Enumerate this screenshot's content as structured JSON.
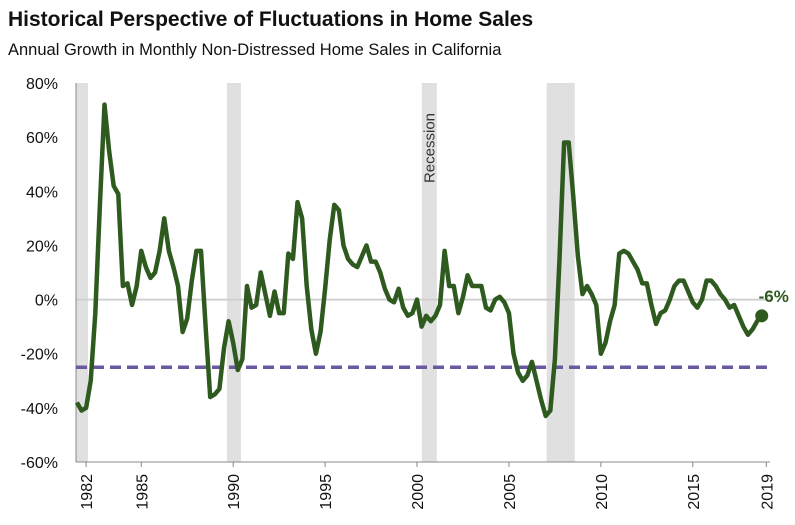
{
  "chart_data": {
    "type": "line",
    "title": "Historical Perspective of Fluctuations in Home Sales",
    "subtitle": "Annual Growth in Monthly Non-Distressed Home Sales in California",
    "x": [
      1981.5,
      1981.75,
      1982,
      1982.25,
      1982.5,
      1982.75,
      1983,
      1983.25,
      1983.5,
      1983.75,
      1984,
      1984.25,
      1984.5,
      1984.75,
      1985,
      1985.25,
      1985.5,
      1985.75,
      1986,
      1986.25,
      1986.5,
      1986.75,
      1987,
      1987.25,
      1987.5,
      1987.75,
      1988,
      1988.25,
      1988.5,
      1988.75,
      1989,
      1989.25,
      1989.5,
      1989.75,
      1990,
      1990.25,
      1990.5,
      1990.75,
      1991,
      1991.25,
      1991.5,
      1991.75,
      1992,
      1992.25,
      1992.5,
      1992.75,
      1993,
      1993.25,
      1993.5,
      1993.75,
      1994,
      1994.25,
      1994.5,
      1994.75,
      1995,
      1995.25,
      1995.5,
      1995.75,
      1996,
      1996.25,
      1996.5,
      1996.75,
      1997,
      1997.25,
      1997.5,
      1997.75,
      1998,
      1998.25,
      1998.5,
      1998.75,
      1999,
      1999.25,
      1999.5,
      1999.75,
      2000,
      2000.25,
      2000.5,
      2000.75,
      2001,
      2001.25,
      2001.5,
      2001.75,
      2002,
      2002.25,
      2002.5,
      2002.75,
      2003,
      2003.25,
      2003.5,
      2003.75,
      2004,
      2004.25,
      2004.5,
      2004.75,
      2005,
      2005.25,
      2005.5,
      2005.75,
      2006,
      2006.25,
      2006.5,
      2006.75,
      2007,
      2007.25,
      2007.5,
      2007.75,
      2008,
      2008.25,
      2008.5,
      2008.75,
      2009,
      2009.25,
      2009.5,
      2009.75,
      2010,
      2010.25,
      2010.5,
      2010.75,
      2011,
      2011.25,
      2011.5,
      2011.75,
      2012,
      2012.25,
      2012.5,
      2012.75,
      2013,
      2013.25,
      2013.5,
      2013.75,
      2014,
      2014.25,
      2014.5,
      2014.75,
      2015,
      2015.25,
      2015.5,
      2015.75,
      2016,
      2016.25,
      2016.5,
      2016.75,
      2017,
      2017.25,
      2017.5,
      2017.75,
      2018,
      2018.25,
      2018.5,
      2018.75
    ],
    "series": [
      {
        "name": "Annual growth",
        "color": "#2f5a1f",
        "values": [
          -38,
          -41,
          -40,
          -30,
          -5,
          35,
          72,
          55,
          42,
          39,
          5,
          6,
          -2,
          5,
          18,
          12,
          8,
          10,
          18,
          30,
          18,
          12,
          5,
          -12,
          -7,
          7,
          18,
          18,
          -10,
          -36,
          -35,
          -33,
          -18,
          -8,
          -16,
          -26,
          -22,
          5,
          -3,
          -2,
          10,
          2,
          -6,
          3,
          -5,
          -5,
          17,
          15,
          36,
          30,
          5,
          -11,
          -20,
          -12,
          4,
          22,
          35,
          33,
          20,
          15,
          13,
          12,
          16,
          20,
          14,
          14,
          10,
          4,
          0,
          -1,
          4,
          -3,
          -6,
          -5,
          0,
          -10,
          -6,
          -8,
          -6,
          -2,
          18,
          5,
          5,
          -5,
          1,
          9,
          5,
          5,
          5,
          -3,
          -4,
          0,
          1,
          -1,
          -5,
          -20,
          -27,
          -30,
          -28,
          -23,
          -30,
          -37,
          -43,
          -41,
          -22,
          15,
          58,
          58,
          38,
          16,
          2,
          5,
          2,
          -2,
          -20,
          -16,
          -8,
          -2,
          17,
          18,
          17,
          14,
          11,
          6,
          6,
          -2,
          -9,
          -5,
          -4,
          0,
          5,
          7,
          7,
          3,
          -1,
          -3,
          0,
          7,
          7,
          5,
          2,
          0,
          -3,
          -2,
          -6,
          -10,
          -13,
          -11,
          -8,
          -6
        ]
      }
    ],
    "end_label": "-6%",
    "reference_line": {
      "value": -25,
      "color": "#6a58a0"
    },
    "recessions": [
      [
        1981.45,
        1982.1
      ],
      [
        1989.66,
        1990.42
      ],
      [
        2000.26,
        2001.08
      ],
      [
        2007.05,
        2008.58
      ]
    ],
    "recession_label": "Recession",
    "xlim": [
      1981.45,
      2019.2
    ],
    "xticks": [
      1982,
      1985,
      1990,
      1995,
      2000,
      2005,
      2010,
      2015,
      2019
    ],
    "ylim": [
      -60,
      80
    ],
    "yticks": [
      {
        "value": -60,
        "label": "-60%"
      },
      {
        "value": -40,
        "label": "-40%"
      },
      {
        "value": -20,
        "label": "-20%"
      },
      {
        "value": 0,
        "label": "0%"
      },
      {
        "value": 20,
        "label": "20%"
      },
      {
        "value": 40,
        "label": "40%"
      },
      {
        "value": 60,
        "label": "60%"
      },
      {
        "value": 80,
        "label": "80%"
      }
    ]
  }
}
